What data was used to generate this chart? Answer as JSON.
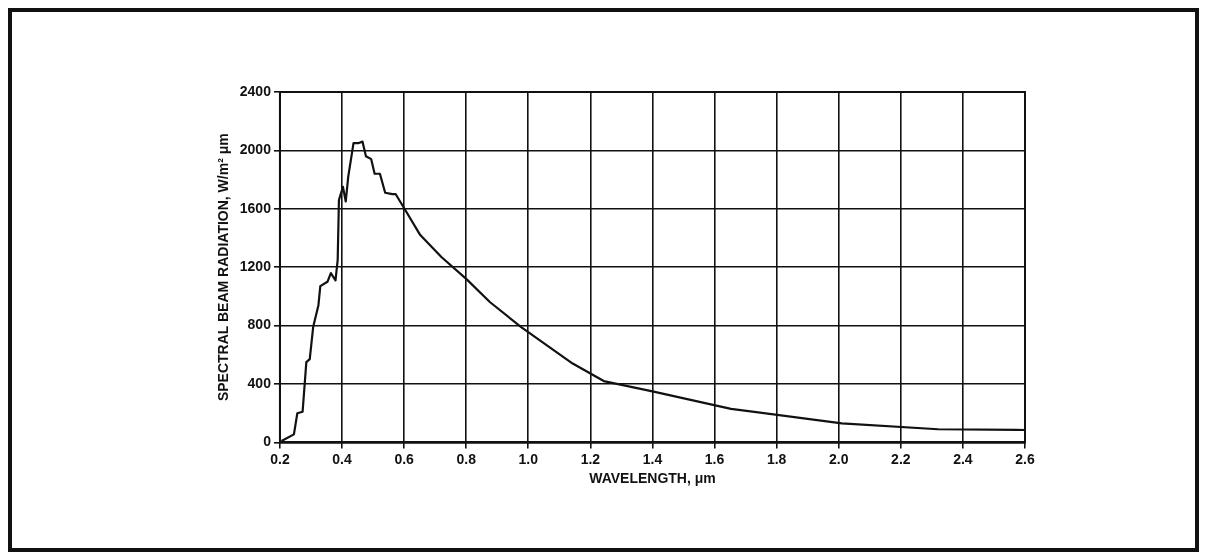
{
  "chart_data": {
    "type": "line",
    "xlabel": "WAVELENGTH, μm",
    "ylabel": "SPECTRAL BEAM RADIATION, W/m² μm",
    "series": [
      {
        "color": "#111111",
        "x": [
          0.205,
          0.245,
          0.256,
          0.273,
          0.285,
          0.296,
          0.307,
          0.324,
          0.33,
          0.353,
          0.364,
          0.379,
          0.386,
          0.39,
          0.403,
          0.412,
          0.42,
          0.437,
          0.454,
          0.466,
          0.477,
          0.494,
          0.505,
          0.522,
          0.539,
          0.562,
          0.573,
          0.607,
          0.652,
          0.72,
          0.8,
          0.877,
          0.977,
          1.143,
          1.243,
          1.4,
          1.653,
          2.01,
          2.32,
          2.6
        ],
        "values": [
          10,
          55,
          200,
          210,
          550,
          570,
          790,
          940,
          1070,
          1100,
          1160,
          1110,
          1250,
          1660,
          1750,
          1650,
          1820,
          2050,
          2050,
          2060,
          1960,
          1940,
          1840,
          1840,
          1710,
          1700,
          1700,
          1580,
          1420,
          1270,
          1120,
          960,
          790,
          540,
          420,
          350,
          230,
          130,
          90,
          85
        ]
      }
    ],
    "xlim": [
      0.2,
      2.6
    ],
    "xticks": [
      0.2,
      0.4,
      0.6,
      0.8,
      {
        "value": 1,
        "label": "1.0"
      },
      1.2,
      1.4,
      1.6,
      1.8,
      {
        "value": 2,
        "label": "2.0"
      },
      2.2,
      2.4,
      2.6
    ],
    "ylim": [
      0,
      2400
    ],
    "yticks": [
      0,
      400,
      800,
      1200,
      1600,
      2000,
      2400
    ],
    "grid": true,
    "legend": false,
    "marker": "none",
    "line_style": "solid"
  }
}
